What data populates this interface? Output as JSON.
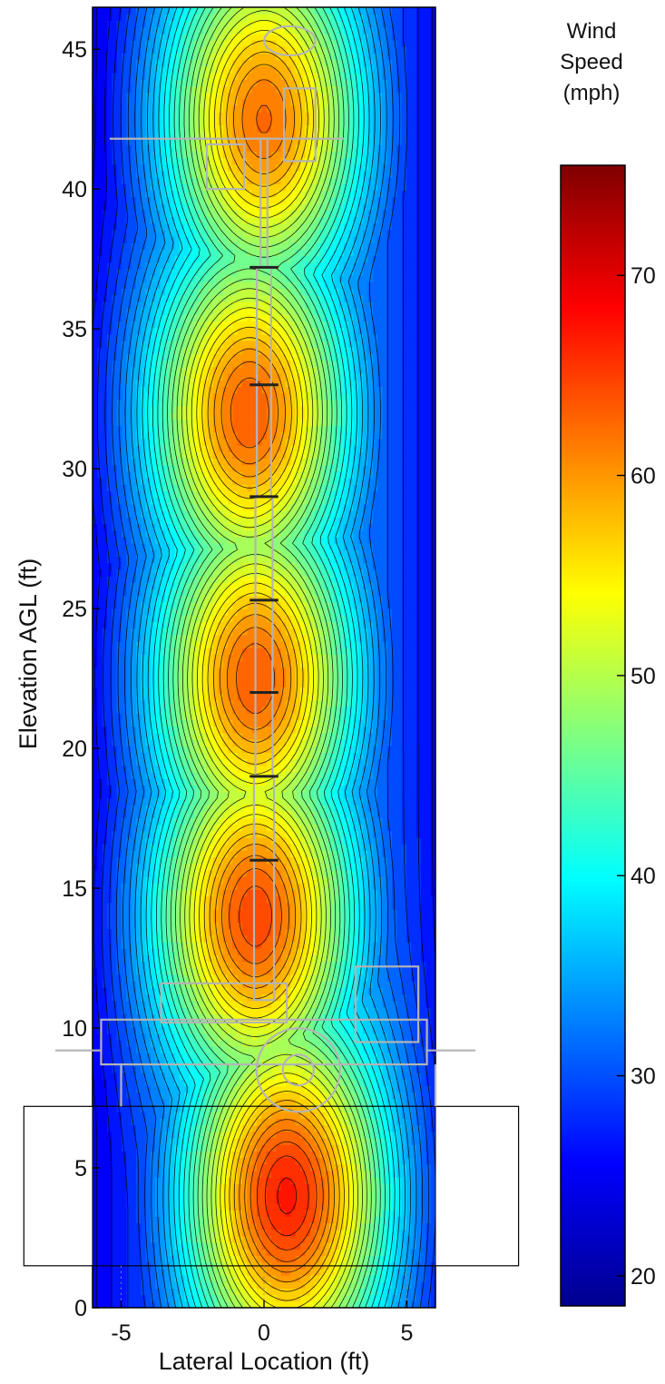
{
  "chart_data": {
    "type": "heatmap",
    "title": "",
    "xlabel": "Lateral Location (ft)",
    "ylabel": "Elevation AGL (ft)",
    "xlim": [
      -6,
      6
    ],
    "ylim": [
      0,
      46.5
    ],
    "xticks": [
      -5,
      0,
      5
    ],
    "yticks": [
      0,
      5,
      10,
      15,
      20,
      25,
      30,
      35,
      40,
      45
    ],
    "x_tick_labels": [
      "-5",
      "0",
      "5"
    ],
    "y_tick_labels": [
      "0",
      "5",
      "10",
      "15",
      "20",
      "25",
      "30",
      "35",
      "40",
      "45"
    ],
    "colorbar": {
      "title_lines": [
        "Wind",
        "Speed",
        "(mph)"
      ],
      "range": [
        18.5,
        75.5
      ],
      "ticks": [
        20,
        30,
        40,
        50,
        60,
        70
      ],
      "tick_labels": [
        "20",
        "30",
        "40",
        "50",
        "60",
        "70"
      ],
      "colormap": "jet",
      "colors": [
        "#00008f",
        "#0000ff",
        "#0080ff",
        "#00ffff",
        "#80ff80",
        "#ffff00",
        "#ff8000",
        "#ff0000",
        "#800000"
      ]
    },
    "contour_levels": 38,
    "hotspots": [
      {
        "x": 0.0,
        "y": 42.5,
        "peak_mph": 72
      },
      {
        "x": -0.5,
        "y": 32,
        "peak_mph": 73
      },
      {
        "x": -0.3,
        "y": 22.5,
        "peak_mph": 73
      },
      {
        "x": -0.3,
        "y": 14,
        "peak_mph": 74
      },
      {
        "x": 0.8,
        "y": 4,
        "peak_mph": 76
      }
    ],
    "edge_speed_mph": 20,
    "ground_plane_region": {
      "x": [
        -8.5,
        9
      ],
      "y": [
        1.5,
        7.2
      ]
    },
    "equipment_overlay": "light tower mast and trailer"
  }
}
